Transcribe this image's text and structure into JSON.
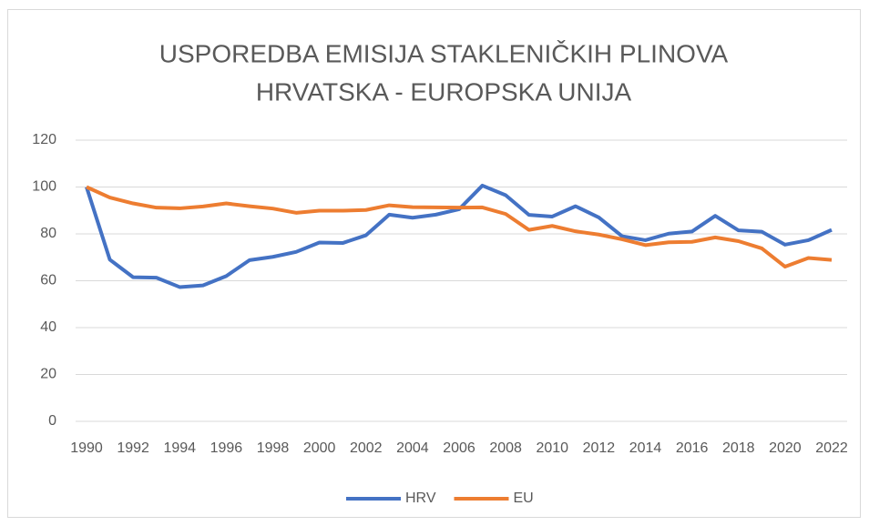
{
  "chart_data": {
    "type": "line",
    "title": [
      "USPOREDBA EMISIJA STAKLENIČKIH PLINOVA",
      "HRVATSKA - EUROPSKA UNIJA"
    ],
    "x": [
      1990,
      1991,
      1992,
      1993,
      1994,
      1995,
      1996,
      1997,
      1998,
      1999,
      2000,
      2001,
      2002,
      2003,
      2004,
      2005,
      2006,
      2007,
      2008,
      2009,
      2010,
      2011,
      2012,
      2013,
      2014,
      2015,
      2016,
      2017,
      2018,
      2019,
      2020,
      2021,
      2022
    ],
    "xlim": [
      1990,
      2022
    ],
    "xticks": [
      1990,
      1992,
      1994,
      1996,
      1998,
      2000,
      2002,
      2004,
      2006,
      2008,
      2010,
      2012,
      2014,
      2016,
      2018,
      2020,
      2022
    ],
    "ylim": [
      0,
      120
    ],
    "yticks": [
      0,
      20,
      40,
      60,
      80,
      100,
      120
    ],
    "grid": true,
    "legend": "bottom",
    "series": [
      {
        "name": "HRV",
        "color": "#4472c4",
        "values": [
          100,
          69,
          61.5,
          61.3,
          57.3,
          58,
          62,
          68.8,
          70.2,
          72.3,
          76.3,
          76.1,
          79.4,
          88.2,
          86.9,
          88.2,
          90.5,
          100.6,
          96.5,
          88.1,
          87.4,
          91.8,
          87,
          79,
          77.3,
          80.1,
          81,
          87.7,
          81.5,
          80.9,
          75.4,
          77.3,
          81.7
        ]
      },
      {
        "name": "EU",
        "color": "#ed7d31",
        "values": [
          100,
          95.5,
          93,
          91.2,
          90.9,
          91.7,
          93,
          91.8,
          90.8,
          89,
          89.9,
          89.9,
          90.2,
          92.2,
          91.4,
          91.3,
          91.2,
          91.3,
          88.5,
          81.7,
          83.4,
          81.1,
          79.7,
          77.7,
          75.2,
          76.4,
          76.6,
          78.5,
          76.9,
          73.8,
          66,
          69.7,
          68.9
        ]
      }
    ]
  }
}
